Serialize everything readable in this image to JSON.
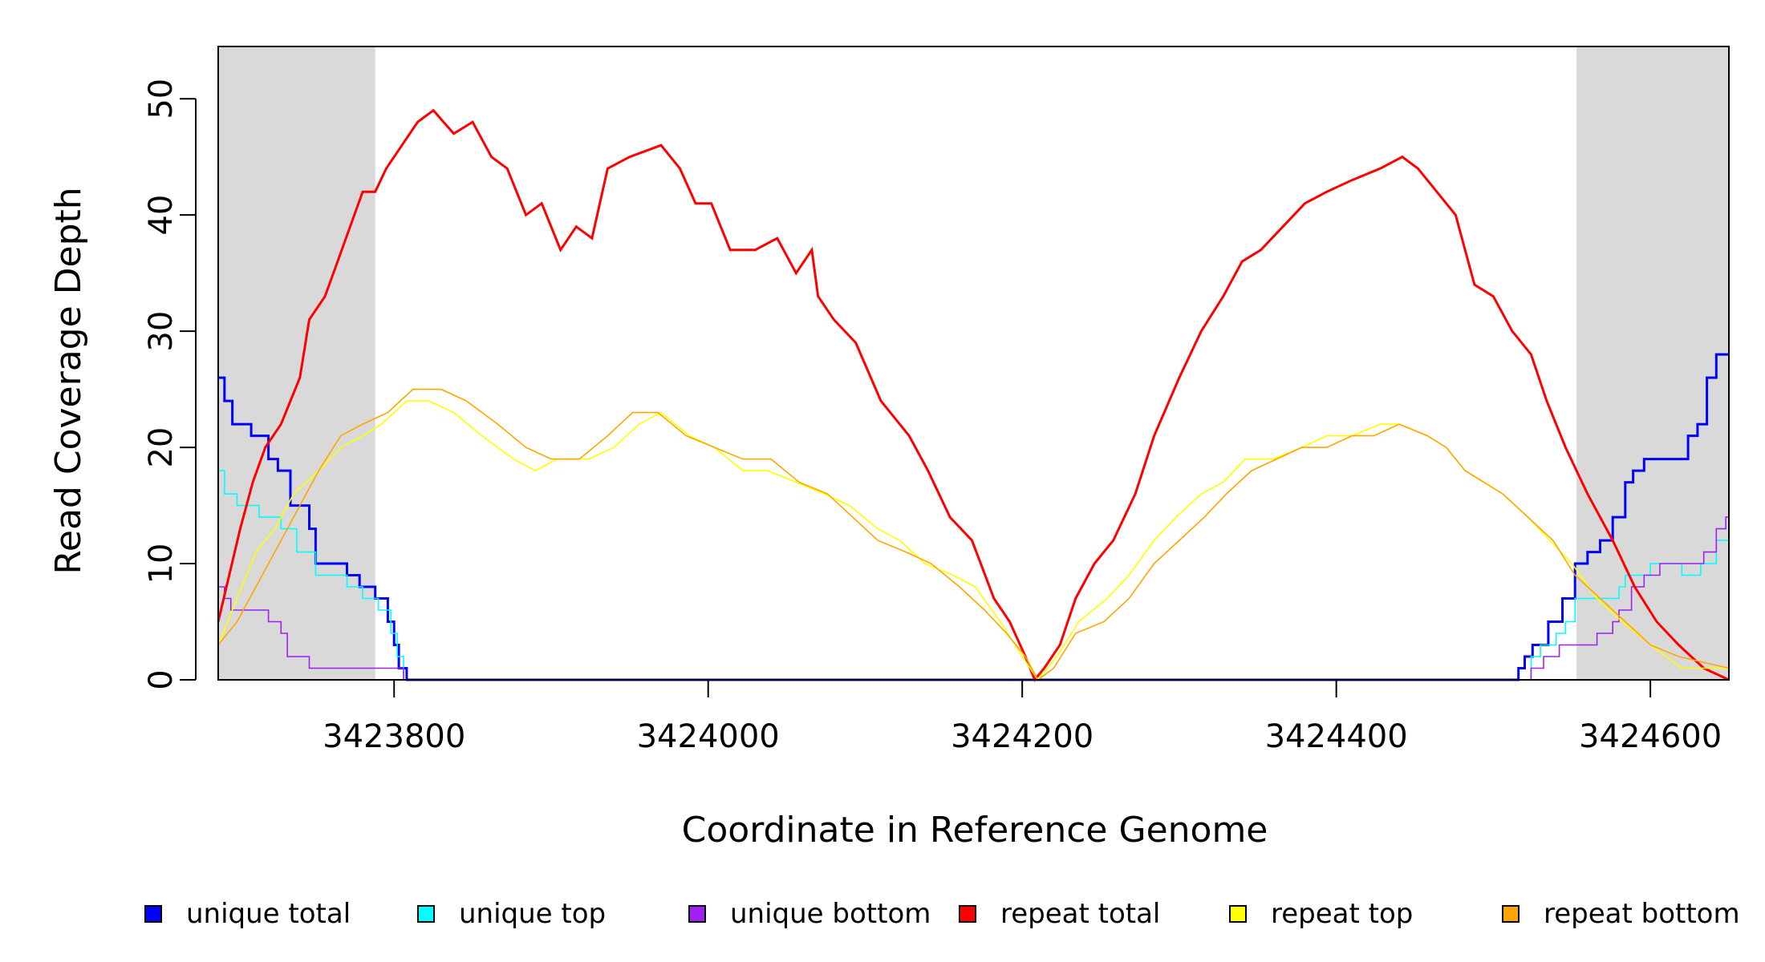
{
  "chart_data": {
    "type": "line",
    "title": "",
    "xlabel": "Coordinate in Reference Genome",
    "ylabel": "Read Coverage Depth",
    "xlim": [
      3423688,
      3424650
    ],
    "ylim": [
      0,
      54.5
    ],
    "xticks": [
      3423800,
      3424000,
      3424200,
      3424400,
      3424600
    ],
    "xtick_labels": [
      "3423800",
      "3424000",
      "3424200",
      "3424400",
      "3424600"
    ],
    "yticks": [
      0,
      10,
      20,
      30,
      40,
      50
    ],
    "ytick_labels": [
      "0",
      "10",
      "20",
      "30",
      "40",
      "50"
    ],
    "grid": false,
    "legend_position": "bottom",
    "shaded_regions": [
      [
        3423688,
        3423788
      ],
      [
        3424553,
        3424650
      ]
    ],
    "series": [
      {
        "name": "unique total",
        "color": "#0000ff",
        "step": true,
        "points": [
          [
            3423688,
            26
          ],
          [
            3423692,
            24
          ],
          [
            3423697,
            22
          ],
          [
            3423709,
            21
          ],
          [
            3423720,
            19
          ],
          [
            3423726,
            18
          ],
          [
            3423734,
            15
          ],
          [
            3423746,
            13
          ],
          [
            3423750,
            10
          ],
          [
            3423770,
            9
          ],
          [
            3423778,
            8
          ],
          [
            3423788,
            7
          ],
          [
            3423796,
            5
          ],
          [
            3423800,
            3
          ],
          [
            3423803,
            1
          ],
          [
            3423808,
            0
          ],
          [
            3424512,
            0
          ],
          [
            3424516,
            1
          ],
          [
            3424520,
            2
          ],
          [
            3424525,
            3
          ],
          [
            3424535,
            5
          ],
          [
            3424544,
            7
          ],
          [
            3424552,
            10
          ],
          [
            3424560,
            11
          ],
          [
            3424568,
            12
          ],
          [
            3424576,
            14
          ],
          [
            3424584,
            17
          ],
          [
            3424589,
            18
          ],
          [
            3424596,
            19
          ],
          [
            3424624,
            21
          ],
          [
            3424630,
            22
          ],
          [
            3424636,
            26
          ],
          [
            3424642,
            28
          ],
          [
            3424650,
            28
          ]
        ]
      },
      {
        "name": "unique top",
        "color": "#00ffff",
        "step": true,
        "points": [
          [
            3423688,
            18
          ],
          [
            3423692,
            16
          ],
          [
            3423700,
            15
          ],
          [
            3423714,
            14
          ],
          [
            3423728,
            13
          ],
          [
            3423738,
            11
          ],
          [
            3423750,
            9
          ],
          [
            3423770,
            8
          ],
          [
            3423780,
            7
          ],
          [
            3423790,
            6
          ],
          [
            3423798,
            4
          ],
          [
            3423802,
            2
          ],
          [
            3423806,
            0
          ],
          [
            3424520,
            0
          ],
          [
            3424524,
            2
          ],
          [
            3424530,
            3
          ],
          [
            3424540,
            4
          ],
          [
            3424546,
            5
          ],
          [
            3424552,
            7
          ],
          [
            3424580,
            8
          ],
          [
            3424584,
            9
          ],
          [
            3424600,
            10
          ],
          [
            3424620,
            9
          ],
          [
            3424632,
            10
          ],
          [
            3424642,
            12
          ],
          [
            3424650,
            13
          ]
        ]
      },
      {
        "name": "unique bottom",
        "color": "#a020f0",
        "step": true,
        "points": [
          [
            3423688,
            8
          ],
          [
            3423692,
            7
          ],
          [
            3423696,
            6
          ],
          [
            3423720,
            5
          ],
          [
            3423728,
            4
          ],
          [
            3423732,
            2
          ],
          [
            3423746,
            1
          ],
          [
            3423803,
            1
          ],
          [
            3423806,
            0
          ],
          [
            3424520,
            0
          ],
          [
            3424524,
            1
          ],
          [
            3424532,
            2
          ],
          [
            3424542,
            3
          ],
          [
            3424566,
            4
          ],
          [
            3424576,
            5
          ],
          [
            3424580,
            6
          ],
          [
            3424588,
            8
          ],
          [
            3424596,
            9
          ],
          [
            3424606,
            10
          ],
          [
            3424624,
            10
          ],
          [
            3424634,
            11
          ],
          [
            3424642,
            13
          ],
          [
            3424648,
            14
          ],
          [
            3424650,
            14
          ]
        ]
      },
      {
        "name": "repeat total",
        "color": "#ff0000",
        "step": false,
        "points": [
          [
            3423688,
            5
          ],
          [
            3423695,
            9
          ],
          [
            3423702,
            13
          ],
          [
            3423710,
            17
          ],
          [
            3423718,
            20
          ],
          [
            3423728,
            22
          ],
          [
            3423740,
            26
          ],
          [
            3423746,
            31
          ],
          [
            3423756,
            33
          ],
          [
            3423764,
            36
          ],
          [
            3423772,
            39
          ],
          [
            3423780,
            42
          ],
          [
            3423788,
            42
          ],
          [
            3423795,
            44
          ],
          [
            3423805,
            46
          ],
          [
            3423815,
            48
          ],
          [
            3423825,
            49
          ],
          [
            3423838,
            47
          ],
          [
            3423850,
            48
          ],
          [
            3423862,
            45
          ],
          [
            3423872,
            44
          ],
          [
            3423884,
            40
          ],
          [
            3423894,
            41
          ],
          [
            3423906,
            37
          ],
          [
            3423916,
            39
          ],
          [
            3423926,
            38
          ],
          [
            3423936,
            44
          ],
          [
            3423950,
            45
          ],
          [
            3423970,
            46
          ],
          [
            3423982,
            44
          ],
          [
            3423992,
            41
          ],
          [
            3424002,
            41
          ],
          [
            3424014,
            37
          ],
          [
            3424030,
            37
          ],
          [
            3424044,
            38
          ],
          [
            3424056,
            35
          ],
          [
            3424066,
            37
          ],
          [
            3424070,
            33
          ],
          [
            3424080,
            31
          ],
          [
            3424094,
            29
          ],
          [
            3424110,
            24
          ],
          [
            3424128,
            21
          ],
          [
            3424140,
            18
          ],
          [
            3424154,
            14
          ],
          [
            3424168,
            12
          ],
          [
            3424182,
            7
          ],
          [
            3424192,
            5
          ],
          [
            3424202,
            2
          ],
          [
            3424208,
            0
          ],
          [
            3424214,
            1
          ],
          [
            3424224,
            3
          ],
          [
            3424234,
            7
          ],
          [
            3424246,
            10
          ],
          [
            3424258,
            12
          ],
          [
            3424272,
            16
          ],
          [
            3424284,
            21
          ],
          [
            3424300,
            26
          ],
          [
            3424314,
            30
          ],
          [
            3424328,
            33
          ],
          [
            3424340,
            36
          ],
          [
            3424352,
            37
          ],
          [
            3424366,
            39
          ],
          [
            3424380,
            41
          ],
          [
            3424394,
            42
          ],
          [
            3424410,
            43
          ],
          [
            3424428,
            44
          ],
          [
            3424442,
            45
          ],
          [
            3424452,
            44
          ],
          [
            3424464,
            42
          ],
          [
            3424476,
            40
          ],
          [
            3424488,
            34
          ],
          [
            3424500,
            33
          ],
          [
            3424512,
            30
          ],
          [
            3424524,
            28
          ],
          [
            3424534,
            24
          ],
          [
            3424546,
            20
          ],
          [
            3424560,
            16
          ],
          [
            3424576,
            12
          ],
          [
            3424590,
            8
          ],
          [
            3424604,
            5
          ],
          [
            3424618,
            3
          ],
          [
            3424634,
            1
          ],
          [
            3424650,
            0
          ]
        ]
      },
      {
        "name": "repeat top",
        "color": "#ffff00",
        "step": false,
        "points": [
          [
            3423688,
            3
          ],
          [
            3423700,
            7
          ],
          [
            3423712,
            11
          ],
          [
            3423724,
            13
          ],
          [
            3423736,
            16
          ],
          [
            3423752,
            18
          ],
          [
            3423766,
            20
          ],
          [
            3423780,
            21
          ],
          [
            3423792,
            22
          ],
          [
            3423808,
            24
          ],
          [
            3423822,
            24
          ],
          [
            3423838,
            23
          ],
          [
            3423856,
            21
          ],
          [
            3423876,
            19
          ],
          [
            3423890,
            18
          ],
          [
            3423904,
            19
          ],
          [
            3423924,
            19
          ],
          [
            3423940,
            20
          ],
          [
            3423956,
            22
          ],
          [
            3423970,
            23
          ],
          [
            3423988,
            21
          ],
          [
            3424004,
            20
          ],
          [
            3424022,
            18
          ],
          [
            3424038,
            18
          ],
          [
            3424056,
            17
          ],
          [
            3424074,
            16
          ],
          [
            3424090,
            15
          ],
          [
            3424108,
            13
          ],
          [
            3424122,
            12
          ],
          [
            3424138,
            10
          ],
          [
            3424156,
            9
          ],
          [
            3424170,
            8
          ],
          [
            3424186,
            5
          ],
          [
            3424200,
            2
          ],
          [
            3424210,
            0
          ],
          [
            3424222,
            2
          ],
          [
            3424236,
            5
          ],
          [
            3424254,
            7
          ],
          [
            3424268,
            9
          ],
          [
            3424284,
            12
          ],
          [
            3424298,
            14
          ],
          [
            3424314,
            16
          ],
          [
            3424328,
            17
          ],
          [
            3424342,
            19
          ],
          [
            3424360,
            19
          ],
          [
            3424378,
            20
          ],
          [
            3424394,
            21
          ],
          [
            3424410,
            21
          ],
          [
            3424428,
            22
          ],
          [
            3424440,
            22
          ],
          [
            3424458,
            21
          ],
          [
            3424470,
            20
          ],
          [
            3424482,
            18
          ],
          [
            3424494,
            17
          ],
          [
            3424506,
            16
          ],
          [
            3424522,
            14
          ],
          [
            3424536,
            12
          ],
          [
            3424550,
            10
          ],
          [
            3424566,
            7
          ],
          [
            3424582,
            5
          ],
          [
            3424600,
            3
          ],
          [
            3424620,
            1
          ],
          [
            3424650,
            1
          ]
        ]
      },
      {
        "name": "repeat bottom",
        "color": "#ffa500",
        "step": false,
        "points": [
          [
            3423688,
            3
          ],
          [
            3423700,
            5
          ],
          [
            3423712,
            8
          ],
          [
            3423724,
            11
          ],
          [
            3423736,
            14
          ],
          [
            3423752,
            18
          ],
          [
            3423766,
            21
          ],
          [
            3423780,
            22
          ],
          [
            3423796,
            23
          ],
          [
            3423812,
            25
          ],
          [
            3423830,
            25
          ],
          [
            3423846,
            24
          ],
          [
            3423866,
            22
          ],
          [
            3423884,
            20
          ],
          [
            3423900,
            19
          ],
          [
            3423918,
            19
          ],
          [
            3423936,
            21
          ],
          [
            3423952,
            23
          ],
          [
            3423968,
            23
          ],
          [
            3423986,
            21
          ],
          [
            3424004,
            20
          ],
          [
            3424022,
            19
          ],
          [
            3424040,
            19
          ],
          [
            3424058,
            17
          ],
          [
            3424076,
            16
          ],
          [
            3424092,
            14
          ],
          [
            3424108,
            12
          ],
          [
            3424126,
            11
          ],
          [
            3424142,
            10
          ],
          [
            3424160,
            8
          ],
          [
            3424176,
            6
          ],
          [
            3424190,
            4
          ],
          [
            3424202,
            2
          ],
          [
            3424210,
            0
          ],
          [
            3424220,
            1
          ],
          [
            3424234,
            4
          ],
          [
            3424252,
            5
          ],
          [
            3424268,
            7
          ],
          [
            3424284,
            10
          ],
          [
            3424300,
            12
          ],
          [
            3424316,
            14
          ],
          [
            3424330,
            16
          ],
          [
            3424346,
            18
          ],
          [
            3424362,
            19
          ],
          [
            3424378,
            20
          ],
          [
            3424394,
            20
          ],
          [
            3424410,
            21
          ],
          [
            3424424,
            21
          ],
          [
            3424440,
            22
          ],
          [
            3424458,
            21
          ],
          [
            3424470,
            20
          ],
          [
            3424482,
            18
          ],
          [
            3424494,
            17
          ],
          [
            3424506,
            16
          ],
          [
            3424522,
            14
          ],
          [
            3424538,
            12
          ],
          [
            3424552,
            9
          ],
          [
            3424568,
            7
          ],
          [
            3424584,
            5
          ],
          [
            3424600,
            3
          ],
          [
            3424618,
            2
          ],
          [
            3424650,
            1
          ]
        ]
      }
    ]
  }
}
